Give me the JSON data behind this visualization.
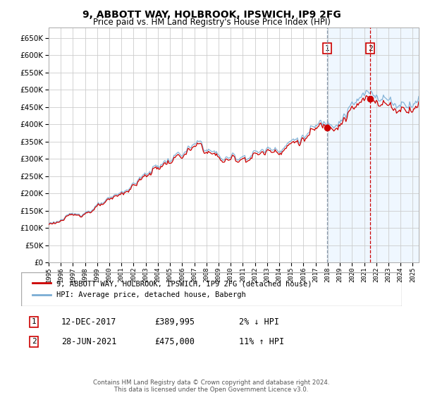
{
  "title": "9, ABBOTT WAY, HOLBROOK, IPSWICH, IP9 2FG",
  "subtitle": "Price paid vs. HM Land Registry's House Price Index (HPI)",
  "ytick_values": [
    0,
    50000,
    100000,
    150000,
    200000,
    250000,
    300000,
    350000,
    400000,
    450000,
    500000,
    550000,
    600000,
    650000
  ],
  "ylim": [
    0,
    680000
  ],
  "xlim_start": 1995.0,
  "xlim_end": 2025.5,
  "hpi_color": "#7aadd4",
  "price_color": "#cc0000",
  "sale1_date": 2017.95,
  "sale1_price": 389995,
  "sale2_date": 2021.5,
  "sale2_price": 475000,
  "sale1_label": "1",
  "sale2_label": "2",
  "legend_line1": "9, ABBOTT WAY, HOLBROOK, IPSWICH, IP9 2FG (detached house)",
  "legend_line2": "HPI: Average price, detached house, Babergh",
  "footer": "Contains HM Land Registry data © Crown copyright and database right 2024.\nThis data is licensed under the Open Government Licence v3.0.",
  "background_color": "#ffffff",
  "grid_color": "#cccccc",
  "shade_color": "#ddeeff",
  "sale1_vline_color": "#aaaacc",
  "sale2_vline_color": "#cc0000"
}
